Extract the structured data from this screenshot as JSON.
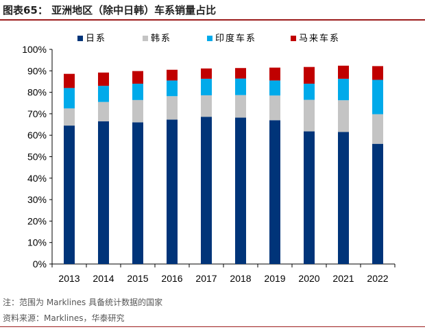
{
  "header": {
    "title": "图表65：   亚洲地区（除中日韩）车系销量占比"
  },
  "notes": {
    "note": "注：范围为 Marklines 具备统计数据的国家",
    "source": "资料来源：Marklines，华泰研究"
  },
  "colors": {
    "japan": "#003479",
    "korea": "#c4c4c4",
    "india": "#00aaea",
    "malaysia": "#c00000",
    "title_rule": "#9b1b1b"
  },
  "chart_data": {
    "type": "bar",
    "stacked": true,
    "categories": [
      "2013",
      "2014",
      "2015",
      "2016",
      "2017",
      "2018",
      "2019",
      "2020",
      "2021",
      "2022"
    ],
    "series": [
      {
        "name": "日系",
        "color": "#003479",
        "values": [
          64.5,
          66.5,
          66.0,
          67.3,
          68.6,
          68.2,
          67.0,
          61.8,
          61.5,
          56.0
        ]
      },
      {
        "name": "韩系",
        "color": "#c4c4c4",
        "values": [
          8.0,
          9.0,
          10.4,
          10.9,
          10.0,
          10.5,
          11.5,
          14.7,
          14.8,
          13.8
        ]
      },
      {
        "name": "印度车系",
        "color": "#00aaea",
        "values": [
          9.5,
          7.5,
          7.6,
          7.3,
          7.7,
          7.7,
          7.0,
          7.5,
          10.0,
          16.0
        ]
      },
      {
        "name": "马来车系",
        "color": "#c00000",
        "values": [
          6.6,
          6.2,
          5.9,
          5.0,
          4.8,
          4.9,
          6.0,
          7.8,
          6.1,
          6.4
        ]
      }
    ],
    "ylim": [
      0,
      100
    ],
    "yticks": [
      "0%",
      "10%",
      "20%",
      "30%",
      "40%",
      "50%",
      "60%",
      "70%",
      "80%",
      "90%",
      "100%"
    ],
    "legend_position": "top",
    "grid": false,
    "xlabel": "",
    "ylabel": ""
  }
}
